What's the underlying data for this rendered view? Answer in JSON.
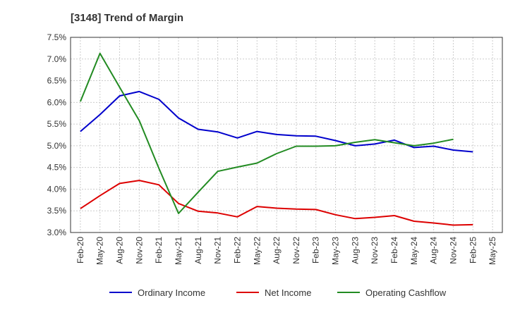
{
  "chart_data": {
    "type": "line",
    "title": "[3148]  Trend of Margin",
    "xlabel": "",
    "ylabel": "",
    "x_ticks": [
      "Feb-20",
      "May-20",
      "Aug-20",
      "Nov-20",
      "Feb-21",
      "May-21",
      "Aug-21",
      "Nov-21",
      "Feb-22",
      "May-22",
      "Aug-22",
      "Nov-22",
      "Feb-23",
      "May-23",
      "Aug-23",
      "Nov-23",
      "Feb-24",
      "May-24",
      "Aug-24",
      "Nov-24",
      "Feb-25",
      "May-25"
    ],
    "y_ticks": [
      "3.0%",
      "3.5%",
      "4.0%",
      "4.5%",
      "5.0%",
      "5.5%",
      "6.0%",
      "6.5%",
      "7.0%",
      "7.5%"
    ],
    "ylim": [
      3.0,
      7.5
    ],
    "grid": true,
    "legend_position": "bottom",
    "series": [
      {
        "name": "Ordinary Income",
        "color": "#0000cc",
        "values": [
          5.33,
          5.72,
          6.15,
          6.25,
          6.07,
          5.64,
          5.38,
          5.32,
          5.18,
          5.33,
          5.26,
          5.23,
          5.22,
          5.12,
          5.0,
          5.04,
          5.13,
          4.96,
          4.99,
          4.9,
          4.86,
          null
        ]
      },
      {
        "name": "Net Income",
        "color": "#dd0000",
        "values": [
          3.55,
          3.85,
          4.13,
          4.2,
          4.1,
          3.67,
          3.49,
          3.45,
          3.36,
          3.6,
          3.56,
          3.54,
          3.53,
          3.41,
          3.32,
          3.35,
          3.39,
          3.26,
          3.22,
          3.17,
          3.18,
          null
        ]
      },
      {
        "name": "Operating Cashflow",
        "color": "#228b22",
        "values": [
          6.02,
          7.13,
          6.35,
          5.58,
          4.48,
          3.44,
          3.93,
          4.41,
          4.51,
          4.6,
          4.82,
          4.99,
          4.99,
          5.0,
          5.08,
          5.14,
          5.07,
          5.0,
          5.06,
          5.15,
          null,
          null
        ]
      }
    ]
  }
}
